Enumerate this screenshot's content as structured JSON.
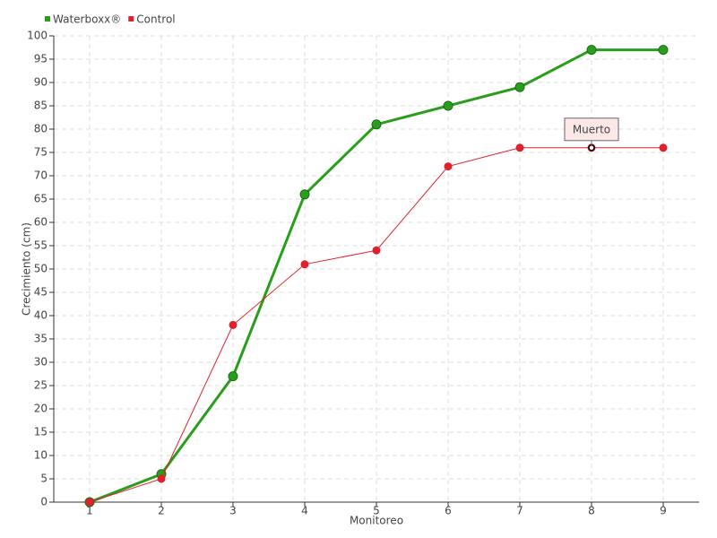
{
  "chart_data": {
    "type": "line",
    "x": [
      1,
      2,
      3,
      4,
      5,
      6,
      7,
      8,
      9
    ],
    "xlim": [
      0.5,
      9.5
    ],
    "xticks": [
      1,
      2,
      3,
      4,
      5,
      6,
      7,
      8,
      9
    ],
    "ylim": [
      0,
      100
    ],
    "yticks": [
      0,
      5,
      10,
      15,
      20,
      25,
      30,
      35,
      40,
      45,
      50,
      55,
      60,
      65,
      70,
      75,
      80,
      85,
      90,
      95,
      100
    ],
    "x_label": "Monitoreo",
    "y_label": "Crecimiento (cm)",
    "grid": true,
    "legend": "top-left",
    "series": [
      {
        "name": "Waterboxx®",
        "color": "#2a9d1c",
        "values": [
          0,
          6,
          27,
          66,
          81,
          85,
          89,
          97,
          97
        ]
      },
      {
        "name": "Control",
        "color": "#e0202c",
        "values": [
          0,
          5,
          38,
          51,
          54,
          72,
          76,
          76,
          76
        ]
      }
    ],
    "annotations": [
      {
        "text": "Muerto",
        "x": 8,
        "y": 76
      }
    ]
  }
}
